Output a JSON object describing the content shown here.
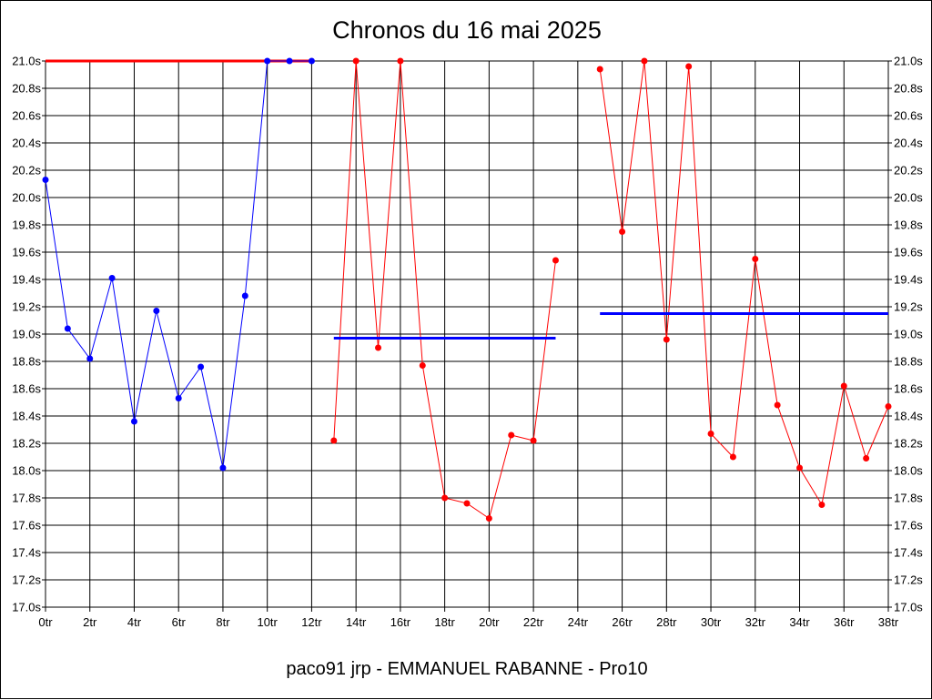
{
  "chart_data": {
    "type": "line",
    "title": "Chronos du 16 mai 2025",
    "footer": "paco91 jrp - EMMANUEL RABANNE - Pro10",
    "xlabel": "",
    "ylabel": "",
    "xlim": [
      0,
      38
    ],
    "ylim": [
      17.0,
      21.0
    ],
    "x_tick_labels": [
      "0tr",
      "2tr",
      "4tr",
      "6tr",
      "8tr",
      "10tr",
      "12tr",
      "14tr",
      "16tr",
      "18tr",
      "20tr",
      "22tr",
      "24tr",
      "26tr",
      "28tr",
      "30tr",
      "32tr",
      "34tr",
      "36tr",
      "38tr"
    ],
    "y_tick_labels": [
      "17.0s",
      "17.2s",
      "17.4s",
      "17.6s",
      "17.8s",
      "18.0s",
      "18.2s",
      "18.4s",
      "18.6s",
      "18.8s",
      "19.0s",
      "19.2s",
      "19.4s",
      "19.6s",
      "19.8s",
      "20.0s",
      "20.2s",
      "20.4s",
      "20.6s",
      "20.8s",
      "21.0s"
    ],
    "grid": true,
    "colors": {
      "warmup": "#0000ff",
      "run": "#ff0000",
      "average": "#0000ff",
      "reference": "#ff0000",
      "grid": "#000000"
    },
    "series": [
      {
        "role": "warmup",
        "x": [
          0,
          1,
          2,
          3,
          4,
          5,
          6,
          7,
          8,
          9,
          10,
          11,
          12
        ],
        "y": [
          20.13,
          19.04,
          18.82,
          19.41,
          18.36,
          19.17,
          18.53,
          18.76,
          18.02,
          19.28,
          21.0,
          21.0,
          21.0
        ]
      },
      {
        "role": "run",
        "x": [
          13,
          14,
          15,
          16,
          17,
          18,
          19,
          20,
          21,
          22,
          23
        ],
        "y": [
          18.22,
          21.0,
          18.9,
          21.0,
          18.77,
          17.8,
          17.76,
          17.65,
          18.26,
          18.22,
          19.54
        ]
      },
      {
        "role": "run",
        "x": [
          25,
          26,
          27,
          28,
          29,
          30,
          31,
          32,
          33,
          34,
          35,
          36,
          37,
          38
        ],
        "y": [
          20.94,
          19.75,
          21.0,
          18.96,
          20.96,
          18.27,
          18.1,
          19.55,
          18.48,
          18.02,
          17.75,
          18.62,
          18.09,
          18.47
        ]
      }
    ],
    "reference_lines": [
      {
        "role": "reference",
        "x": [
          0,
          12
        ],
        "y": 21.0
      }
    ],
    "average_lines": [
      {
        "role": "average",
        "x": [
          13,
          23
        ],
        "y": 18.97
      },
      {
        "role": "average",
        "x": [
          25,
          38
        ],
        "y": 19.15
      }
    ]
  }
}
